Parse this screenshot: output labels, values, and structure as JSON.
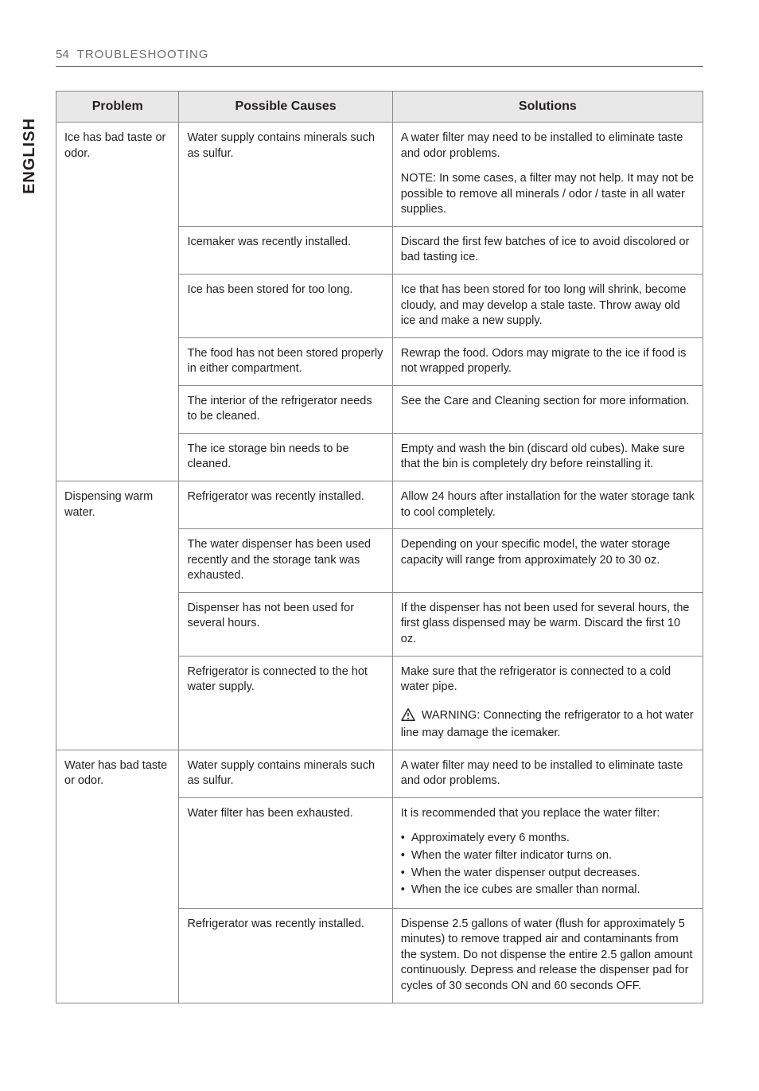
{
  "header": {
    "page_num": "54",
    "section": "TROUBLESHOOTING",
    "vtab": "ENGLISH"
  },
  "table": {
    "head": {
      "problem": "Problem",
      "causes": "Possible Causes",
      "solutions": "Solutions"
    },
    "rows": [
      {
        "problem": "Ice has bad taste or odor.",
        "problem_rowspan": 6,
        "cause": "Water supply contains minerals such as sulfur.",
        "solution_paras": [
          "A water filter may need to be installed to eliminate taste and odor problems.",
          "NOTE: In some cases, a filter may not help. It may not be possible to remove all minerals / odor / taste in all water supplies."
        ]
      },
      {
        "cause": "Icemaker was recently installed.",
        "solution_paras": [
          "Discard the first few batches of ice to avoid discolored or bad tasting ice."
        ]
      },
      {
        "cause": "Ice has been stored for too long.",
        "solution_paras": [
          "Ice that has been stored for too long will shrink, become cloudy, and may develop a stale taste. Throw away old ice and make a new supply."
        ]
      },
      {
        "cause": "The food has not been stored properly in either compartment.",
        "solution_paras": [
          "Rewrap the food. Odors may migrate to the ice if food is not wrapped properly."
        ]
      },
      {
        "cause": "The interior of the refrigerator needs to be cleaned.",
        "solution_paras": [
          "See the Care and Cleaning section for more information."
        ]
      },
      {
        "cause": "The ice storage bin needs to be cleaned.",
        "solution_paras": [
          "Empty and wash the bin (discard old cubes). Make sure that the bin is completely dry before reinstalling it."
        ]
      },
      {
        "problem": "Dispensing warm water.",
        "problem_rowspan": 4,
        "cause": "Refrigerator was recently installed.",
        "solution_paras": [
          "Allow 24 hours after installation for the water storage tank to cool completely."
        ]
      },
      {
        "cause": "The water dispenser has been used recently and the storage tank was exhausted.",
        "solution_paras": [
          "Depending on your specific model, the water storage capacity will range from approximately 20 to 30 oz."
        ]
      },
      {
        "cause": "Dispenser has not been used for several hours.",
        "solution_paras": [
          "If the dispenser has not been used for several hours, the first glass dispensed may be warm. Discard the first 10 oz."
        ]
      },
      {
        "cause": "Refrigerator is connected to the hot water supply.",
        "solution_paras": [
          "Make sure that the refrigerator is connected to a cold water pipe."
        ],
        "warning": "WARNING: Connecting the refrigerator to a hot water line may damage the icemaker."
      },
      {
        "problem": "Water has bad taste or odor.",
        "problem_rowspan": 3,
        "cause": "Water supply contains minerals such as sulfur.",
        "solution_paras": [
          "A water filter may need to be installed to eliminate taste and odor problems."
        ]
      },
      {
        "cause": "Water filter has been exhausted.",
        "solution_paras": [
          "It is recommended that you replace the water filter:"
        ],
        "bullets": [
          "Approximately every 6 months.",
          "When the water filter indicator turns on.",
          "When the water dispenser output decreases.",
          "When the ice cubes are smaller than normal."
        ]
      },
      {
        "cause": "Refrigerator was recently installed.",
        "solution_paras": [
          "Dispense 2.5 gallons of water (flush for approximately 5 minutes) to remove trapped air and contaminants from the system. Do not dispense the entire 2.5 gallon amount continuously. Depress and release the dispenser pad for cycles of 30 seconds ON and 60 seconds OFF."
        ]
      }
    ]
  }
}
